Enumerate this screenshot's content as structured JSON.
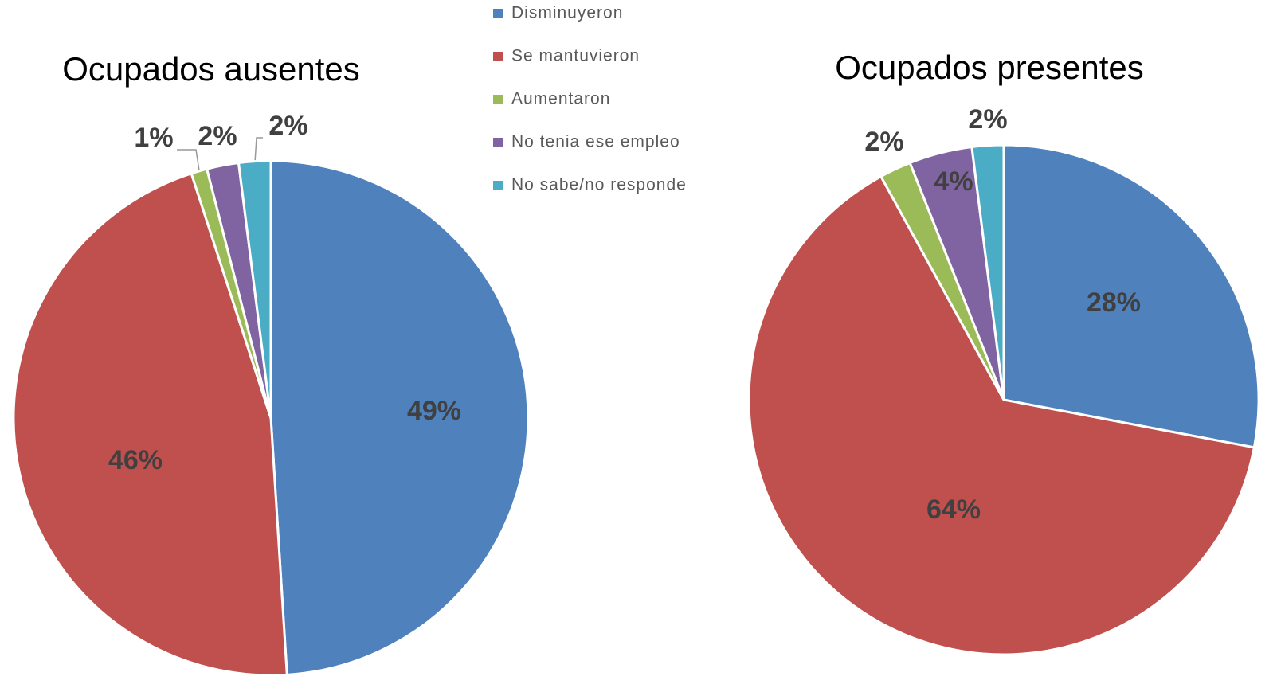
{
  "legend": {
    "categories": [
      "Disminuyeron",
      "Se mantuvieron",
      "Aumentaron",
      "No tenia ese empleo",
      "No sabe/no responde"
    ],
    "colors": [
      "#4f81bd",
      "#c0504d",
      "#9bbb59",
      "#8064a2",
      "#4bacc6"
    ]
  },
  "chart_data": [
    {
      "type": "pie",
      "title": "Ocupados ausentes",
      "values": [
        49,
        46,
        1,
        2,
        2
      ],
      "value_labels": [
        "49%",
        "46%",
        "1%",
        "2%",
        "2%"
      ]
    },
    {
      "type": "pie",
      "title": "Ocupados presentes",
      "values": [
        28,
        64,
        2,
        4,
        2
      ],
      "value_labels": [
        "28%",
        "64%",
        "2%",
        "4%",
        "2%"
      ]
    }
  ]
}
